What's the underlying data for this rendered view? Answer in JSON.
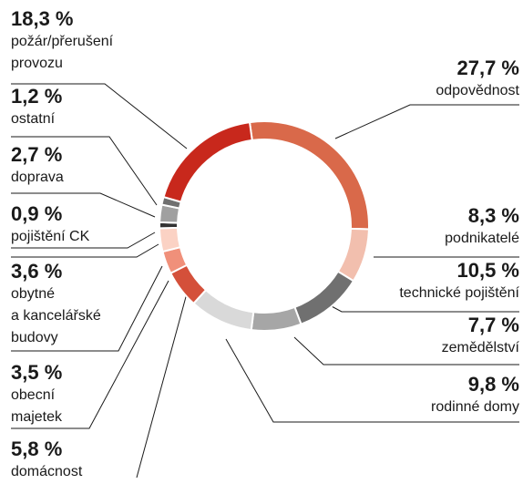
{
  "chart_data": {
    "type": "donut",
    "categories": [
      "odpovědnost",
      "podnikatelé",
      "technické pojištění",
      "zemědělství",
      "rodinné domy",
      "domácnost",
      "obecní\nmajetek",
      "obytné\na kancelářské\nbudovy",
      "pojištění CK",
      "doprava",
      "ostatní",
      "požár/přerušení\nprovozu"
    ],
    "values": [
      27.7,
      8.3,
      10.5,
      7.7,
      9.8,
      5.8,
      3.5,
      3.6,
      0.9,
      2.7,
      1.2,
      18.3
    ],
    "value_labels": [
      "27,7 %",
      "8,3 %",
      "10,5 %",
      "7,7 %",
      "9,8 %",
      "5,8 %",
      "3,5 %",
      "3,6 %",
      "0,9 %",
      "2,7 %",
      "1,2 %",
      "18,3 %"
    ],
    "colors": [
      "#d9694a",
      "#f2bfae",
      "#707070",
      "#a6a6a6",
      "#d9d9d9",
      "#d4503a",
      "#f0907a",
      "#fbd2c4",
      "#333333",
      "#a0a0a0",
      "#707070",
      "#c8281c"
    ]
  }
}
